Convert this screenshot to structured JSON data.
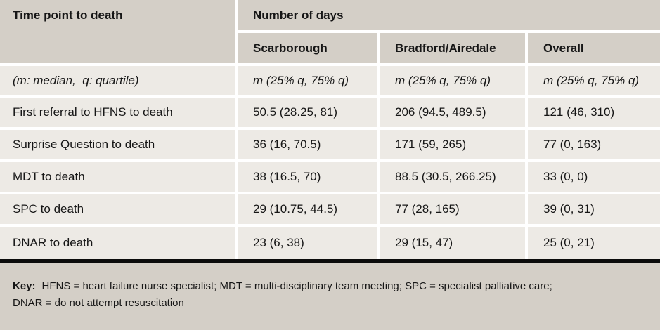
{
  "table": {
    "col1_header": "Time point to death",
    "group_header": "Number of days",
    "columns": [
      "Scarborough",
      "Bradford/Airedale",
      "Overall"
    ],
    "unit_row": {
      "label": "(m: median,  q: quartile)",
      "values": [
        "m (25% q, 75% q)",
        "m (25% q, 75% q)",
        "m (25% q, 75% q)"
      ]
    },
    "rows": [
      {
        "label": "First referral to HFNS to death",
        "values": [
          "50.5 (28.25, 81)",
          "206 (94.5, 489.5)",
          "121 (46, 310)"
        ]
      },
      {
        "label": "Surprise Question to death",
        "values": [
          "36 (16, 70.5)",
          "171 (59, 265)",
          "77 (0, 163)"
        ]
      },
      {
        "label": "MDT to death",
        "values": [
          "38 (16.5, 70)",
          "88.5 (30.5, 266.25)",
          "33 (0, 0)"
        ]
      },
      {
        "label": "SPC to death",
        "values": [
          "29 (10.75, 44.5)",
          "77 (28, 165)",
          "39 (0, 31)"
        ]
      },
      {
        "label": "DNAR to death",
        "values": [
          "23 (6, 38)",
          "29 (15, 47)",
          "25 (0, 21)"
        ]
      }
    ]
  },
  "key": {
    "label": "Key:",
    "line1": "HFNS = heart failure nurse specialist; MDT = multi-disciplinary team meeting; SPC = specialist palliative care;",
    "line2": "DNAR = do not attempt resuscitation"
  },
  "colors": {
    "header_bg": "#d4cfc7",
    "row_bg": "#edeae5",
    "separator": "#ffffff",
    "divider_bar": "#0b0b0b",
    "text": "#161616"
  }
}
